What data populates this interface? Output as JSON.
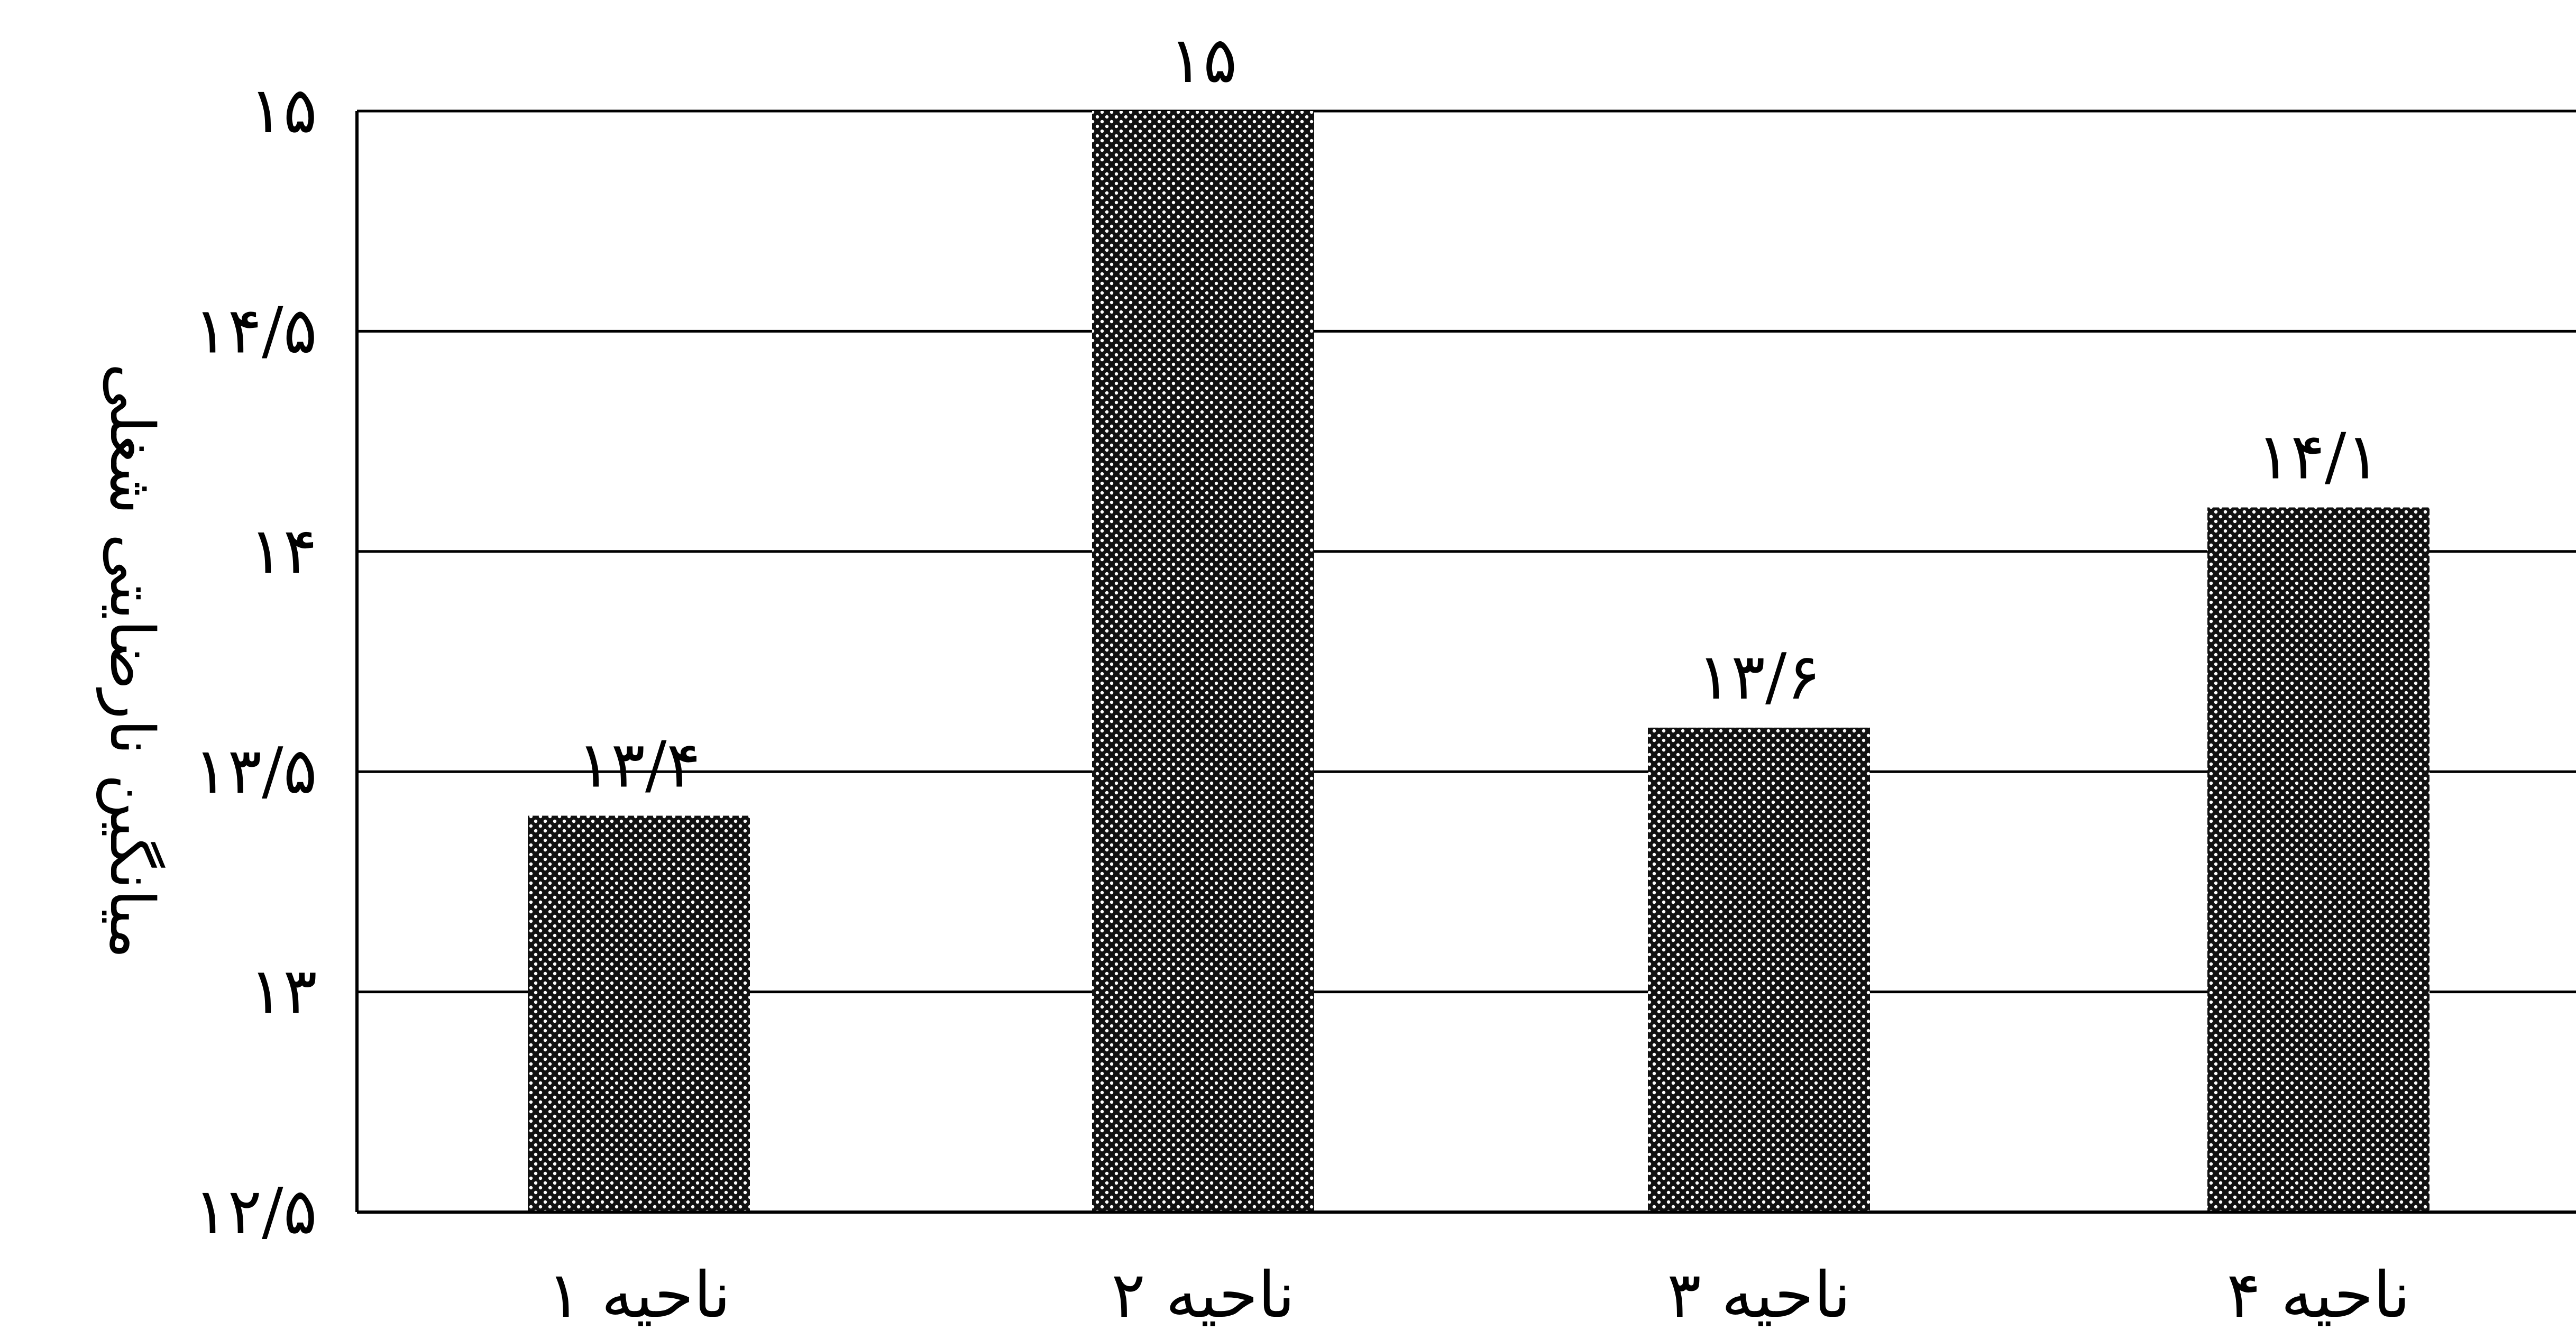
{
  "chart_data": {
    "type": "bar",
    "categories": [
      "ناحیه ۱",
      "ناحیه ۲",
      "ناحیه ۳",
      "ناحیه ۴"
    ],
    "values": [
      13.4,
      15,
      13.6,
      14.1
    ],
    "value_labels": [
      "۱۳/۴",
      "۱۵",
      "۱۳/۶",
      "۱۴/۱"
    ],
    "title": "",
    "xlabel": "",
    "ylabel": "میانگین نارضایتی شغلی",
    "ylim": [
      12.5,
      15
    ],
    "yticks": [
      12.5,
      13,
      13.5,
      14,
      14.5,
      15
    ],
    "ytick_labels": [
      "۱۲/۵",
      "۱۳",
      "۱۳/۵",
      "۱۴",
      "۱۴/۵",
      "۱۵"
    ],
    "grid": true,
    "legend": "none",
    "bar_color": "#2b2b2b",
    "bar_pattern": "dotted"
  }
}
